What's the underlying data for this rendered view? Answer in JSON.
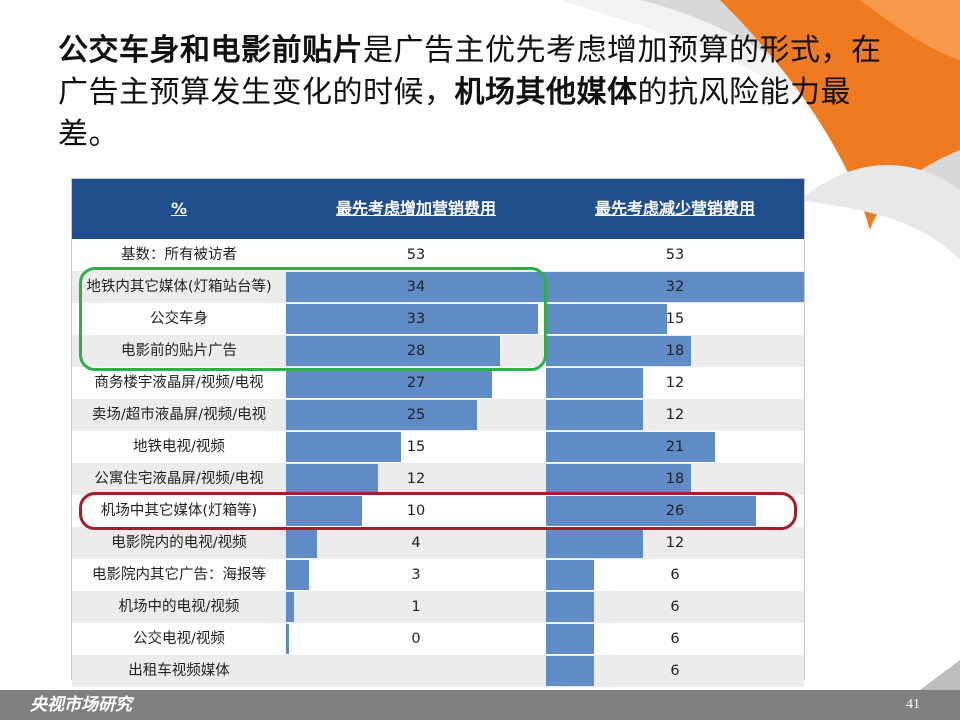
{
  "title": {
    "seg1": "公交车身和电影前贴片",
    "seg2": "是广告主优先考虑增加预算的形式，在广告主预算发生变化的时候，",
    "seg3": "机场其他媒体",
    "seg4": "的抗风险能力最差。"
  },
  "colors": {
    "header_bg": "#1f4e8c",
    "bar": "#5f8bc6",
    "highlight_green": "#2bb04a",
    "highlight_red": "#a81c2c",
    "accent_orange": "#f07a1f",
    "footer_bg": "#808080"
  },
  "chart_data": {
    "type": "table",
    "headers": [
      "%",
      "最先考虑增加营销费用",
      "最先考虑减少营销费用"
    ],
    "base_row": {
      "label": "基数：所有被访者",
      "increase": 53,
      "decrease": 53
    },
    "rows": [
      {
        "label": "地铁内其它媒体(灯箱站台等)",
        "increase": 34,
        "decrease": 32
      },
      {
        "label": "公交车身",
        "increase": 33,
        "decrease": 15
      },
      {
        "label": "电影前的贴片广告",
        "increase": 28,
        "decrease": 18
      },
      {
        "label": "商务楼宇液晶屏/视频/电视",
        "increase": 27,
        "decrease": 12
      },
      {
        "label": "卖场/超市液晶屏/视频/电视",
        "increase": 25,
        "decrease": 12
      },
      {
        "label": "地铁电视/视频",
        "increase": 15,
        "decrease": 21
      },
      {
        "label": "公寓住宅液晶屏/视频/电视",
        "increase": 12,
        "decrease": 18
      },
      {
        "label": "机场中其它媒体(灯箱等)",
        "increase": 10,
        "decrease": 26
      },
      {
        "label": "电影院内的电视/视频",
        "increase": 4,
        "decrease": 12
      },
      {
        "label": "电影院内其它广告：海报等",
        "increase": 3,
        "decrease": 6
      },
      {
        "label": "机场中的电视/视频",
        "increase": 1,
        "decrease": 6
      },
      {
        "label": "公交电视/视频",
        "increase": 0,
        "decrease": 6
      },
      {
        "label": "出租车视频媒体",
        "increase": null,
        "decrease": 6
      }
    ],
    "highlighted_groups": [
      {
        "rows": [
          "地铁内其它媒体(灯箱站台等)",
          "公交车身",
          "电影前的贴片广告"
        ],
        "color": "green"
      },
      {
        "rows": [
          "机场中其它媒体(灯箱等)"
        ],
        "color": "red"
      }
    ]
  },
  "footer": {
    "logo": "央视市场研究",
    "page": "41"
  }
}
